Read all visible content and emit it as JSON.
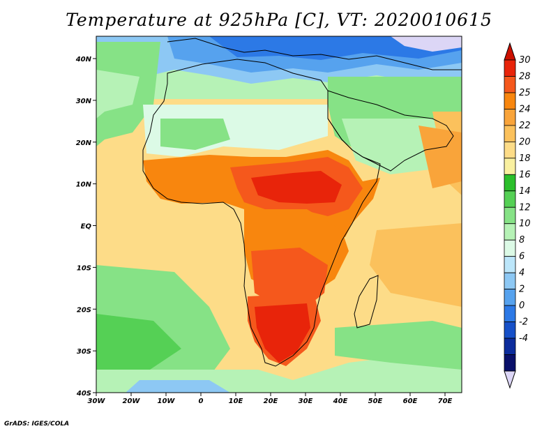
{
  "title": "Temperature at 925hPa [C], VT: 2020010615",
  "credit": "GrADS: IGES/COLA",
  "lat_labels": [
    "40N",
    "30N",
    "20N",
    "10N",
    "EQ",
    "10S",
    "20S",
    "30S",
    "40S"
  ],
  "lon_labels": [
    "30W",
    "20W",
    "10W",
    "0",
    "10E",
    "20E",
    "30E",
    "40E",
    "50E",
    "60E",
    "70E"
  ],
  "colorbar": {
    "labels": [
      "30",
      "28",
      "25",
      "24",
      "22",
      "20",
      "18",
      "16",
      "14",
      "12",
      "10",
      "8",
      "6",
      "4",
      "2",
      "0",
      "-2",
      "-4"
    ],
    "colors": [
      "#e8240a",
      "#f5581c",
      "#f8860e",
      "#f9a43a",
      "#fbc15c",
      "#fddc88",
      "#f9f0a0",
      "#2bbf2b",
      "#55d055",
      "#86e286",
      "#b6f2b6",
      "#dcfae6",
      "#bce6fa",
      "#8dc8f4",
      "#56a2ee",
      "#2c79e6",
      "#1650c8",
      "#0c2c9c",
      "#09106a"
    ],
    "top_color": "#cc1000",
    "bottom_color": "#dcd6f6"
  },
  "palette": {
    "ocean_south_warm": "#fddc88",
    "ocean_tropical": "#fbc15c",
    "sahara": "#b6f2b6",
    "mediterranean": "#56a2ee",
    "hot_core": "#e8240a"
  }
}
